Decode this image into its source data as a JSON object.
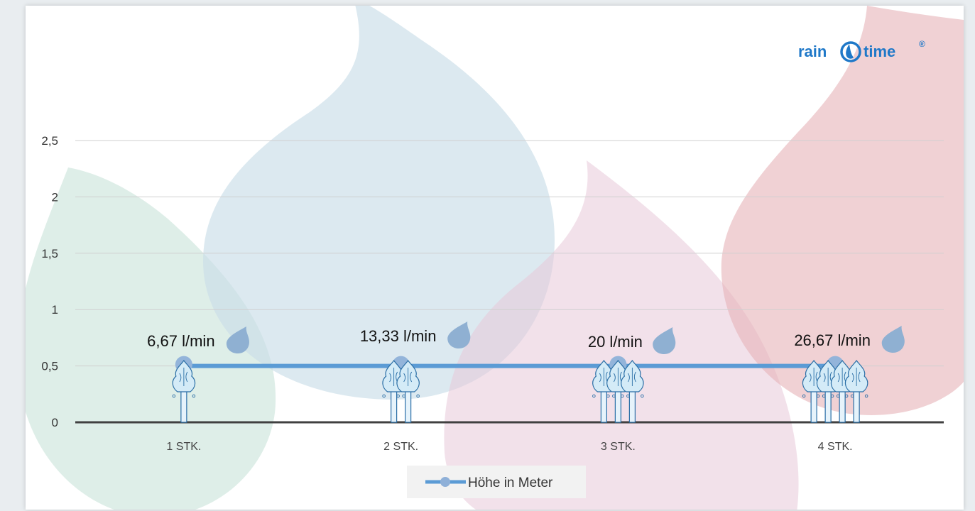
{
  "logo": {
    "text_left": "rain",
    "text_right": "time",
    "registered": "®"
  },
  "chart_data": {
    "type": "line",
    "categories": [
      "1 STK.",
      "2 STK.",
      "3 STK.",
      "4 STK."
    ],
    "series": [
      {
        "name": "Höhe in Meter",
        "values": [
          0.5,
          0.5,
          0.5,
          0.5
        ],
        "color": "#5b9bd5"
      }
    ],
    "flow_labels": [
      "6,67 l/min",
      "13,33 l/min",
      "20 l/min",
      "26,67 l/min"
    ],
    "sprinkler_counts": [
      1,
      2,
      3,
      4
    ],
    "y_ticks": [
      "0",
      "0,5",
      "1",
      "1,5",
      "2",
      "2,5"
    ],
    "ylim": [
      0,
      2.5
    ],
    "grid": true,
    "legend_position": "bottom",
    "xlabel": "",
    "ylabel": "",
    "title": ""
  },
  "colors": {
    "blue_drop": "#c9dde8",
    "pink_drop": "#e8c9d8",
    "red_drop": "#e6b3b8",
    "green_drop": "#c8e3d8",
    "logo_blue": "#1f78c8",
    "water_drop_icon": "#8fb0d2",
    "axis": "#404040",
    "grid": "#cfcfcf"
  }
}
